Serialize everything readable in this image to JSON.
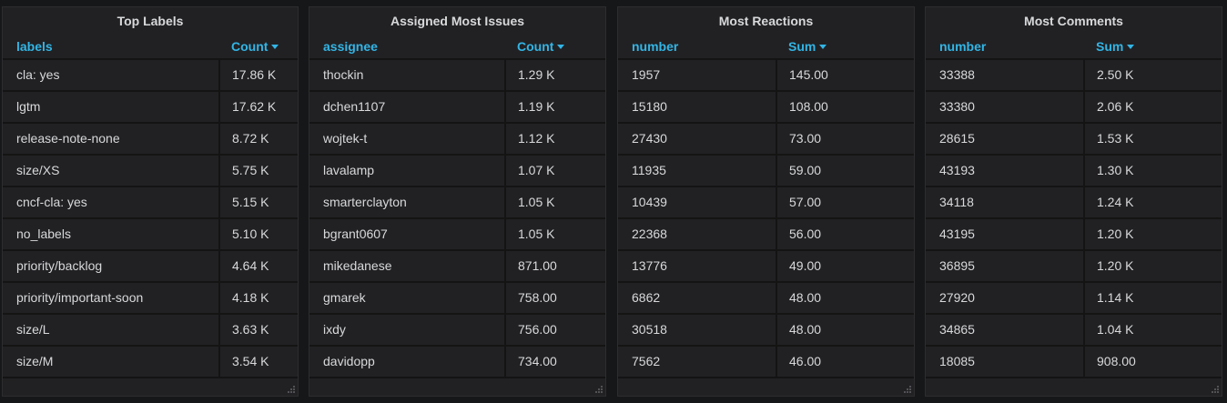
{
  "panels": [
    {
      "title": "Top Labels",
      "col1_header": "labels",
      "col2_header": "Count",
      "rows": [
        [
          "cla: yes",
          "17.86 K"
        ],
        [
          "lgtm",
          "17.62 K"
        ],
        [
          "release-note-none",
          "8.72 K"
        ],
        [
          "size/XS",
          "5.75 K"
        ],
        [
          "cncf-cla: yes",
          "5.15 K"
        ],
        [
          "no_labels",
          "5.10 K"
        ],
        [
          "priority/backlog",
          "4.64 K"
        ],
        [
          "priority/important-soon",
          "4.18 K"
        ],
        [
          "size/L",
          "3.63 K"
        ],
        [
          "size/M",
          "3.54 K"
        ]
      ]
    },
    {
      "title": "Assigned Most Issues",
      "col1_header": "assignee",
      "col2_header": "Count",
      "rows": [
        [
          "thockin",
          "1.29 K"
        ],
        [
          "dchen1107",
          "1.19 K"
        ],
        [
          "wojtek-t",
          "1.12 K"
        ],
        [
          "lavalamp",
          "1.07 K"
        ],
        [
          "smarterclayton",
          "1.05 K"
        ],
        [
          "bgrant0607",
          "1.05 K"
        ],
        [
          "mikedanese",
          "871.00"
        ],
        [
          "gmarek",
          "758.00"
        ],
        [
          "ixdy",
          "756.00"
        ],
        [
          "davidopp",
          "734.00"
        ]
      ]
    },
    {
      "title": "Most Reactions",
      "col1_header": "number",
      "col2_header": "Sum",
      "rows": [
        [
          "1957",
          "145.00"
        ],
        [
          "15180",
          "108.00"
        ],
        [
          "27430",
          "73.00"
        ],
        [
          "11935",
          "59.00"
        ],
        [
          "10439",
          "57.00"
        ],
        [
          "22368",
          "56.00"
        ],
        [
          "13776",
          "49.00"
        ],
        [
          "6862",
          "48.00"
        ],
        [
          "30518",
          "48.00"
        ],
        [
          "7562",
          "46.00"
        ]
      ]
    },
    {
      "title": "Most Comments",
      "col1_header": "number",
      "col2_header": "Sum",
      "rows": [
        [
          "33388",
          "2.50 K"
        ],
        [
          "33380",
          "2.06 K"
        ],
        [
          "28615",
          "1.53 K"
        ],
        [
          "43193",
          "1.30 K"
        ],
        [
          "34118",
          "1.24 K"
        ],
        [
          "43195",
          "1.20 K"
        ],
        [
          "36895",
          "1.20 K"
        ],
        [
          "27920",
          "1.14 K"
        ],
        [
          "34865",
          "1.04 K"
        ],
        [
          "18085",
          "908.00"
        ]
      ]
    }
  ],
  "icons": {
    "sort": "sort-descending-icon",
    "resize": "resize-handle-icon"
  },
  "colors": {
    "background": "#161719",
    "panel": "#212124",
    "header_accent": "#33b5e5",
    "text": "#d8d9da"
  }
}
